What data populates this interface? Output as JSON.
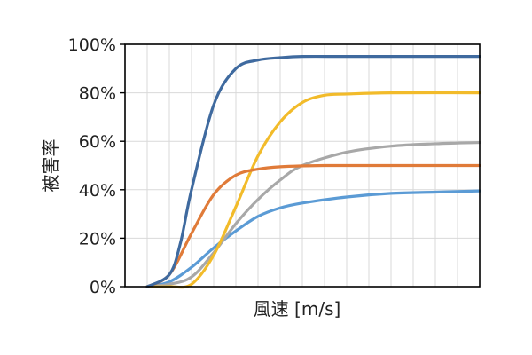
{
  "chart_data": {
    "type": "line",
    "title": "",
    "xlabel": "風速 [m/s]",
    "ylabel": "被害率",
    "x_tick_labels_shown": false,
    "xlim": [
      0,
      16
    ],
    "ylim": [
      0,
      100
    ],
    "y_ticks": [
      0,
      20,
      40,
      60,
      80,
      100
    ],
    "y_tick_labels": [
      "0%",
      "20%",
      "40%",
      "60%",
      "80%",
      "100%"
    ],
    "grid": true,
    "legend": "none",
    "series": [
      {
        "color": "#3f6a9f",
        "x": [
          1,
          2,
          2.5,
          3,
          4,
          5,
          6,
          7,
          8,
          10,
          13,
          16
        ],
        "y": [
          0,
          5,
          18,
          40,
          75,
          90,
          93.5,
          94.5,
          95,
          95,
          95,
          95
        ]
      },
      {
        "color": "#e07b39",
        "x": [
          1,
          2,
          3,
          4,
          5,
          6,
          7,
          9,
          12,
          16
        ],
        "y": [
          0,
          5,
          22,
          38,
          46,
          48.5,
          49.5,
          50,
          50,
          50
        ]
      },
      {
        "color": "#f2bb2a",
        "x": [
          1,
          2,
          3,
          4,
          5,
          6,
          7,
          8,
          9,
          10,
          12,
          16
        ],
        "y": [
          0,
          0,
          1,
          13,
          33,
          54,
          68,
          76,
          79,
          79.5,
          80,
          80
        ]
      },
      {
        "color": "#a8a8a8",
        "x": [
          1,
          2,
          3,
          4,
          5,
          6,
          7,
          8,
          10,
          12,
          14,
          16
        ],
        "y": [
          0,
          1,
          4,
          14,
          26,
          36,
          44,
          50,
          55.5,
          58,
          59,
          59.5
        ]
      },
      {
        "color": "#5b9bd5",
        "x": [
          1,
          2,
          3,
          4,
          5,
          6,
          7,
          8,
          10,
          12,
          14,
          16
        ],
        "y": [
          0,
          2,
          8,
          16,
          23,
          29,
          32.5,
          34.5,
          37,
          38.5,
          39,
          39.5
        ]
      }
    ]
  }
}
